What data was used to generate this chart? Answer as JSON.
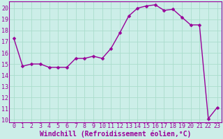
{
  "x": [
    0,
    1,
    2,
    3,
    4,
    5,
    6,
    7,
    8,
    9,
    10,
    11,
    12,
    13,
    14,
    15,
    16,
    17,
    18,
    19,
    20,
    21,
    22,
    23
  ],
  "y": [
    17.3,
    14.8,
    15.0,
    15.0,
    14.7,
    14.7,
    14.7,
    15.5,
    15.5,
    15.7,
    15.5,
    16.4,
    17.8,
    19.3,
    20.0,
    20.2,
    20.3,
    19.8,
    19.9,
    19.2,
    18.5,
    18.5,
    10.1,
    11.1
  ],
  "line_color": "#990099",
  "marker": "D",
  "markersize": 2.5,
  "linewidth": 1.0,
  "background_color": "#cceee8",
  "grid_color": "#aaddcc",
  "xlabel": "Windchill (Refroidissement éolien,°C)",
  "xlabel_fontsize": 7,
  "xlabel_color": "#990099",
  "ylabel_ticks": [
    10,
    11,
    12,
    13,
    14,
    15,
    16,
    17,
    18,
    19,
    20
  ],
  "xlim": [
    -0.5,
    23.5
  ],
  "ylim": [
    9.8,
    20.6
  ],
  "xticks": [
    0,
    1,
    2,
    3,
    4,
    5,
    6,
    7,
    8,
    9,
    10,
    11,
    12,
    13,
    14,
    15,
    16,
    17,
    18,
    19,
    20,
    21,
    22,
    23
  ],
  "tick_fontsize": 6,
  "tick_color": "#990099",
  "spine_color": "#990099"
}
